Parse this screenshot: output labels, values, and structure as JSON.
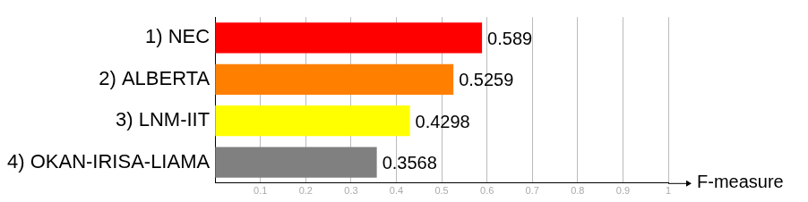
{
  "chart_data": {
    "type": "bar",
    "orientation": "horizontal",
    "categories": [
      "1) NEC",
      "2) ALBERTA",
      "3) LNM-IIT",
      "4) OKAN-IRISA-LIAMA"
    ],
    "values": [
      0.589,
      0.5259,
      0.4298,
      0.3568
    ],
    "colors": [
      "#ff0000",
      "#ff8000",
      "#ffff00",
      "#808080"
    ],
    "xlabel": "F-measure",
    "xlim": [
      0,
      1
    ],
    "xticks": [
      0.1,
      0.2,
      0.3,
      0.4,
      0.5,
      0.6,
      0.7,
      0.8,
      0.9,
      1
    ],
    "grid": true,
    "data_labels": true
  }
}
